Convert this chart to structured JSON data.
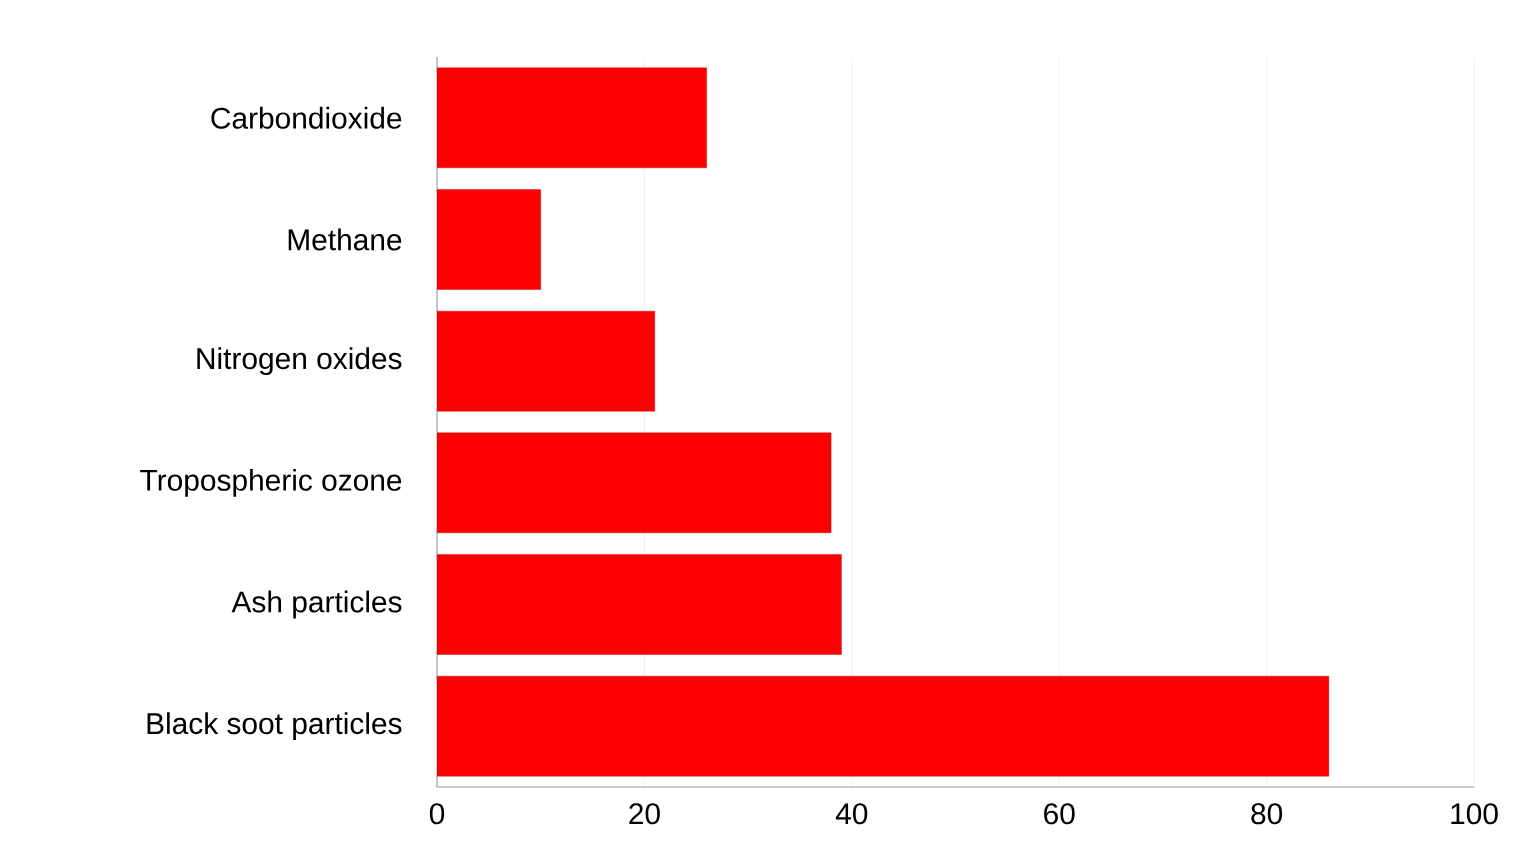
{
  "chart_data": {
    "type": "bar",
    "orientation": "horizontal",
    "categories": [
      "Carbondioxide",
      "Methane",
      "Nitrogen oxides",
      "Tropospheric ozone",
      "Ash particles",
      "Black soot particles"
    ],
    "values": [
      26,
      10,
      21,
      38,
      39,
      86
    ],
    "color": "#ff0000",
    "xlim": [
      0,
      100
    ],
    "xticks": [
      0,
      20,
      40,
      60,
      80,
      100
    ],
    "grid": "x"
  }
}
